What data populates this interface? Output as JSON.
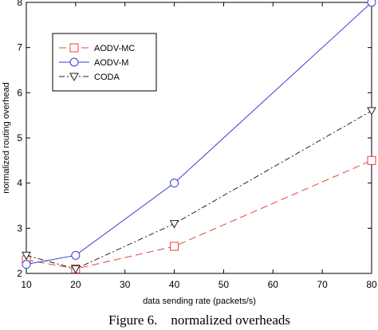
{
  "chart_data": {
    "type": "line",
    "x": [
      10,
      20,
      40,
      80
    ],
    "xlim": [
      10,
      80
    ],
    "ylim": [
      2,
      8
    ],
    "xticks": [
      "10",
      "20",
      "30",
      "40",
      "50",
      "60",
      "70",
      "80"
    ],
    "yticks": [
      "2",
      "3",
      "4",
      "5",
      "6",
      "7",
      "8"
    ],
    "xlabel": "data sending rate (packets/s)",
    "ylabel": "normalized routing overhead",
    "grid": false,
    "legend_position": "top-left",
    "series": [
      {
        "name": "AODV-MC",
        "values": [
          2.3,
          2.1,
          2.6,
          4.5
        ],
        "color": "#e8413c",
        "marker": "square",
        "dash": "long-dash"
      },
      {
        "name": "AODV-M",
        "values": [
          2.2,
          2.4,
          4.0,
          8.0
        ],
        "color": "#3b3bd8",
        "marker": "circle",
        "dash": "solid"
      },
      {
        "name": "CODA",
        "values": [
          2.4,
          2.1,
          3.1,
          5.6
        ],
        "color": "#222222",
        "marker": "triangle-down",
        "dash": "dash-dot"
      }
    ]
  },
  "caption": "Figure 6.    normalized overheads"
}
